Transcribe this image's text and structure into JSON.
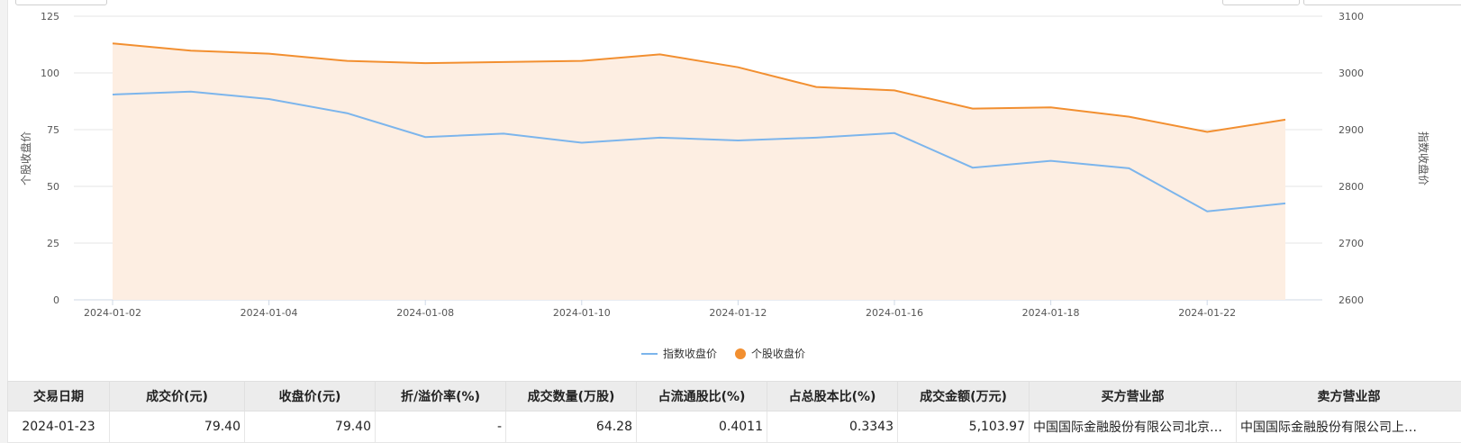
{
  "chart_data": {
    "type": "line",
    "xlabel": "",
    "ylabel_left": "个股收盘价",
    "ylabel_right": "指数收盘价",
    "ylim_left": [
      0,
      125
    ],
    "ylim_right": [
      2600,
      3100
    ],
    "yticks_left": [
      "0",
      "25",
      "50",
      "75",
      "100",
      "125"
    ],
    "yticks_right": [
      "2600",
      "2700",
      "2800",
      "2900",
      "3000",
      "3100"
    ],
    "x": [
      "2024-01-02",
      "2024-01-03",
      "2024-01-04",
      "2024-01-05",
      "2024-01-08",
      "2024-01-09",
      "2024-01-10",
      "2024-01-11",
      "2024-01-12",
      "2024-01-15",
      "2024-01-16",
      "2024-01-17",
      "2024-01-18",
      "2024-01-19",
      "2024-01-22",
      "2024-01-23"
    ],
    "xtick_labels": [
      "2024-01-02",
      "2024-01-04",
      "2024-01-08",
      "2024-01-10",
      "2024-01-12",
      "2024-01-16",
      "2024-01-18",
      "2024-01-22"
    ],
    "grid": true,
    "legend_position": "bottom-center",
    "series": [
      {
        "name": "指数收盘价",
        "axis": "right",
        "color": "#7cb5ec",
        "values": [
          2962,
          2967,
          2954,
          2929,
          2887,
          2893,
          2877,
          2886,
          2881,
          2886,
          2894,
          2833,
          2845,
          2832,
          2756,
          2770
        ]
      },
      {
        "name": "个股收盘价",
        "axis": "left",
        "color": "#f28f30",
        "fill": "#fdeee2",
        "values": [
          113.0,
          109.8,
          108.5,
          105.3,
          104.3,
          104.8,
          105.3,
          108.2,
          102.5,
          93.8,
          92.3,
          84.3,
          84.8,
          80.7,
          74.0,
          79.4
        ]
      }
    ]
  },
  "table": {
    "headers": [
      "交易日期",
      "成交价(元)",
      "收盘价(元)",
      "折/溢价率(%)",
      "成交数量(万股)",
      "占流通股比(%)",
      "占总股本比(%)",
      "成交金额(万元)",
      "买方营业部",
      "卖方营业部"
    ],
    "rows": [
      [
        "2024-01-23",
        "79.40",
        "79.40",
        "-",
        "64.28",
        "0.4011",
        "0.3343",
        "5,103.97",
        "中国国际金融股份有限公司北京…",
        "中国国际金融股份有限公司上…"
      ]
    ]
  }
}
